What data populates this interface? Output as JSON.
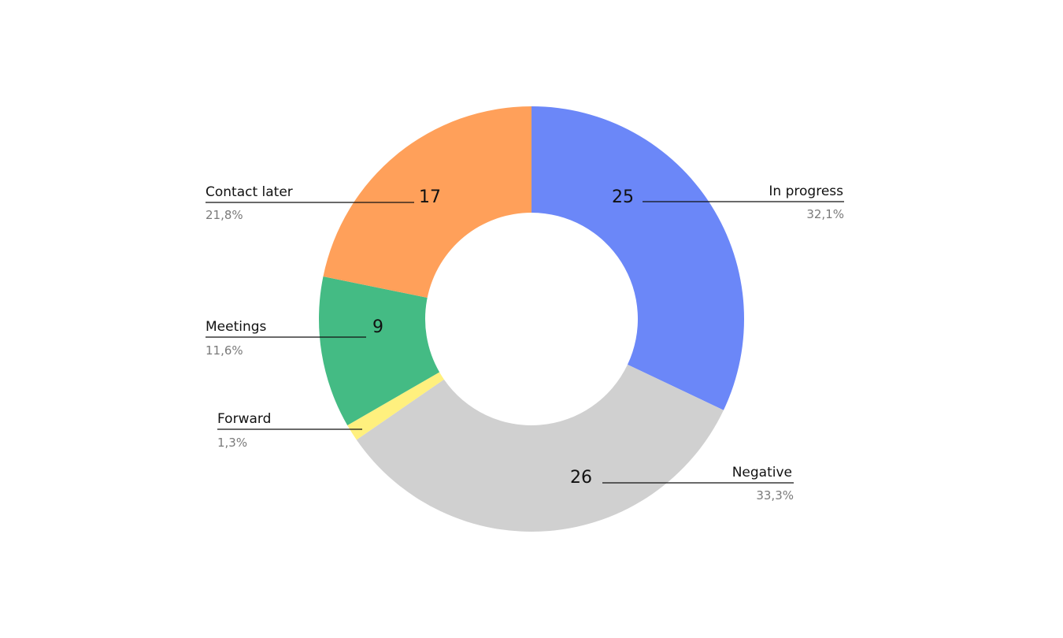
{
  "chart_data": {
    "type": "pie",
    "variant": "donut",
    "title": "",
    "slices": [
      {
        "label": "In progress",
        "value": 25,
        "percent": "32,1%",
        "color": "#6b87f8"
      },
      {
        "label": "Negative",
        "value": 26,
        "percent": "33,3%",
        "color": "#d0d0d0"
      },
      {
        "label": "Forward",
        "value": 1,
        "percent": "1,3%",
        "color": "#fff07e"
      },
      {
        "label": "Meetings",
        "value": 9,
        "percent": "11,6%",
        "color": "#44bb84"
      },
      {
        "label": "Contact later",
        "value": 17,
        "percent": "21,8%",
        "color": "#ffa05a"
      }
    ],
    "legend": "callout labels around the ring",
    "start": "top, clockwise"
  }
}
